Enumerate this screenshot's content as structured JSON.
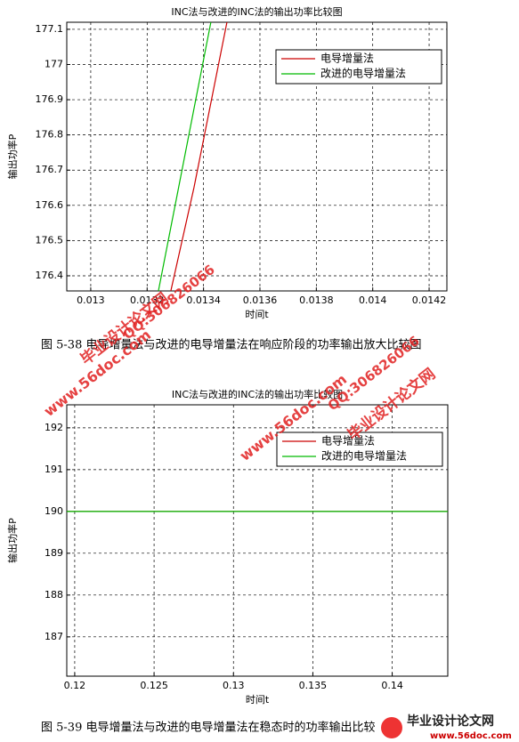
{
  "chart_data": [
    {
      "type": "line",
      "title": "INC法与改进的INC法的输出功率比较图",
      "xlabel": "时间t",
      "ylabel": "输出功率P",
      "xlim": [
        0.012915,
        0.014263
      ],
      "ylim": [
        176.357,
        177.12
      ],
      "xticks": [
        0.013,
        0.0132,
        0.0134,
        0.0136,
        0.0138,
        0.014,
        0.0142
      ],
      "yticks": [
        176.4,
        176.5,
        176.6,
        176.7,
        176.8,
        176.9,
        177,
        177.1
      ],
      "grid": true,
      "legend": "upper right",
      "series": [
        {
          "name": "电导增量法",
          "color": "#cc0000",
          "x": [
            0.013284,
            0.013366,
            0.013483
          ],
          "values": [
            176.357,
            176.65,
            177.12
          ]
        },
        {
          "name": "改进的电导增量法",
          "color": "#00bb00",
          "x": [
            0.01324,
            0.013426
          ],
          "values": [
            176.357,
            177.12
          ]
        }
      ]
    },
    {
      "type": "line",
      "title": "INC法与改进的INC法的输出功率比较图",
      "xlabel": "时间t",
      "ylabel": "输出功率P",
      "xlim": [
        0.1195,
        0.1435
      ],
      "ylim": [
        186.06,
        192.55
      ],
      "xticks": [
        0.12,
        0.125,
        0.13,
        0.135,
        0.14
      ],
      "yticks": [
        187,
        188,
        189,
        190,
        191,
        192
      ],
      "grid": true,
      "legend": "upper right",
      "series": [
        {
          "name": "电导增量法",
          "color": "#cc0000",
          "x": [
            0.1195,
            0.1435
          ],
          "values": [
            190,
            190
          ]
        },
        {
          "name": "改进的电导增量法",
          "color": "#00bb00",
          "x": [
            0.1195,
            0.1435
          ],
          "values": [
            190,
            190
          ]
        }
      ]
    }
  ],
  "captions": [
    "图 5-38   电导增量法与改进的电导增量法在响应阶段的功率输出放大比较图",
    "图 5-39    电导增量法与改进的电导增量法在稳态时的功率输出比较图"
  ],
  "watermarks": [
    "毕业设计论文网",
    "www.56doc.com",
    "QQ:306826066",
    "www.56doc.com",
    "QQ:306826066",
    "毕业设计论文网"
  ],
  "logo": [
    "毕业设计论文网",
    "www.56doc.com"
  ]
}
